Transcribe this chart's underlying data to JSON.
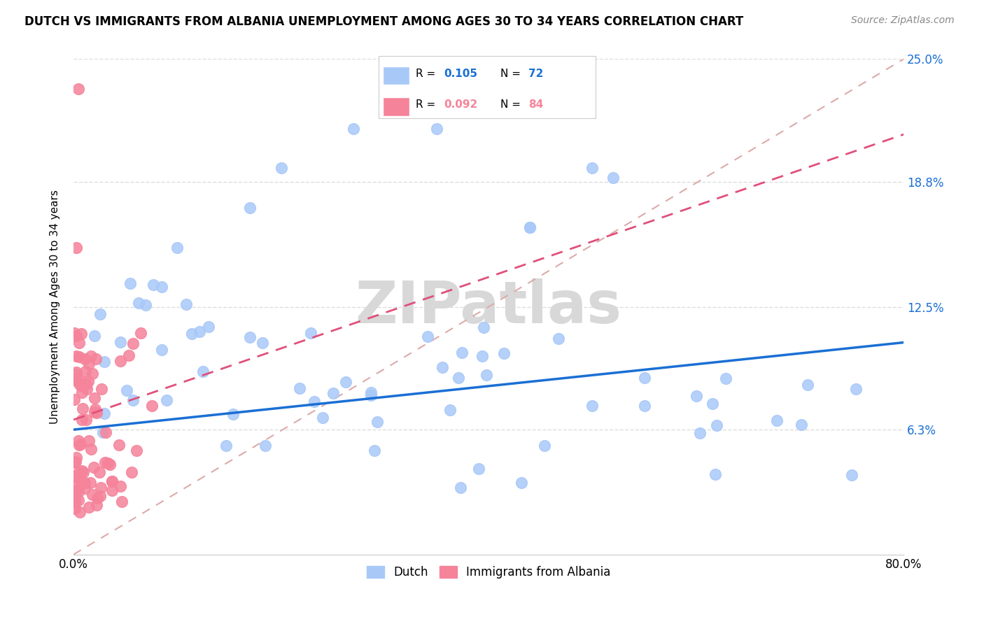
{
  "title": "DUTCH VS IMMIGRANTS FROM ALBANIA UNEMPLOYMENT AMONG AGES 30 TO 34 YEARS CORRELATION CHART",
  "source": "Source: ZipAtlas.com",
  "ylabel": "Unemployment Among Ages 30 to 34 years",
  "xlim": [
    0.0,
    0.8
  ],
  "ylim": [
    0.0,
    0.25
  ],
  "ytick_values": [
    0.0,
    0.063,
    0.125,
    0.188,
    0.25
  ],
  "ytick_labels": [
    "",
    "6.3%",
    "12.5%",
    "18.8%",
    "25.0%"
  ],
  "dutch_R": 0.105,
  "dutch_N": 72,
  "albania_R": 0.092,
  "albania_N": 84,
  "dutch_color": "#a8c8f8",
  "albania_color": "#f5839a",
  "dutch_line_color": "#1a6fd4",
  "albania_line_color": "#e0507a",
  "diag_line_color": "#ddaaaa",
  "background_color": "#ffffff",
  "watermark_color": "#d8d8d8",
  "dutch_line_intercept": 0.063,
  "dutch_line_slope": 0.055,
  "albania_line_intercept": 0.068,
  "albania_line_slope": 0.18,
  "diag_line_x": [
    0.0,
    0.8
  ],
  "diag_line_y": [
    0.0,
    0.25
  ]
}
